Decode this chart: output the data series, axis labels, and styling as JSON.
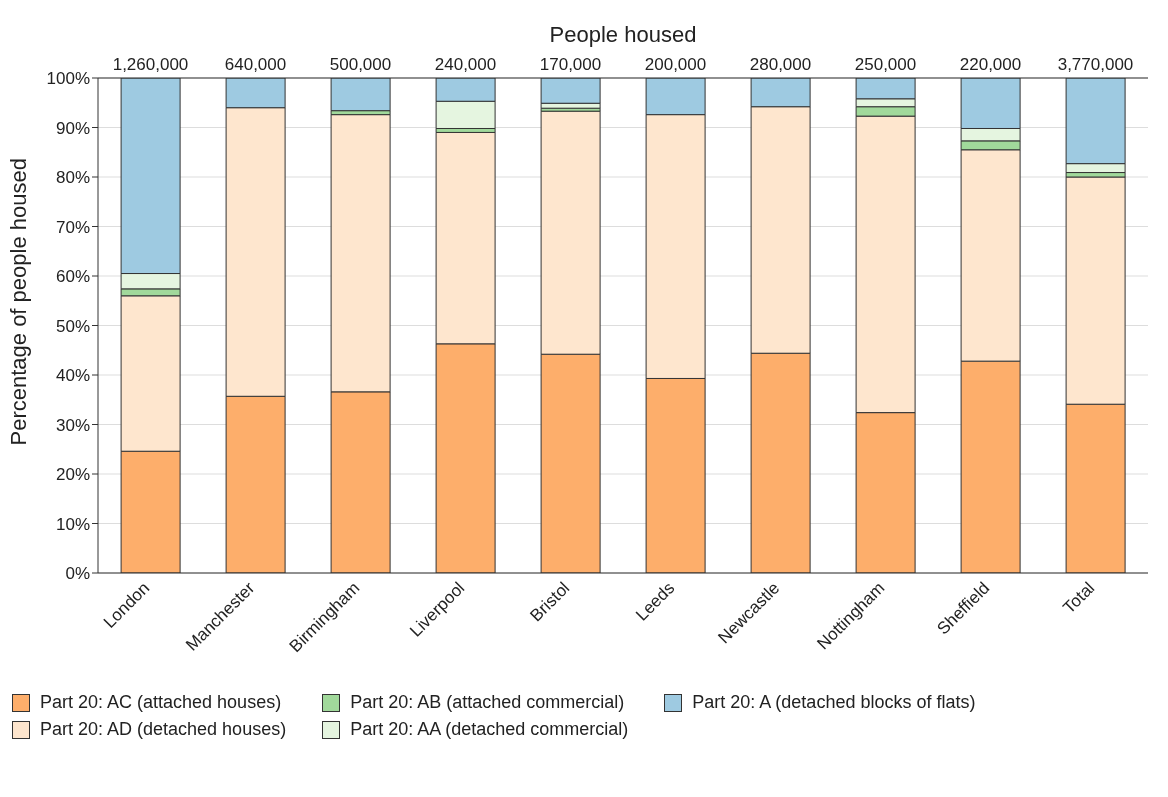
{
  "chart_data": {
    "type": "bar",
    "stacked": true,
    "x2label": "People housed",
    "ylabel": "Percentage of people housed",
    "categories": [
      "London",
      "Manchester",
      "Birmingham",
      "Liverpool",
      "Bristol",
      "Leeds",
      "Newcastle",
      "Nottingham",
      "Sheffield",
      "Total"
    ],
    "series": [
      {
        "name": "Part 20: AC (attached houses)",
        "color": "#fdae6b",
        "values": [
          24.6,
          35.7,
          36.6,
          46.3,
          44.2,
          39.3,
          44.4,
          32.4,
          42.8,
          34.1
        ]
      },
      {
        "name": "Part 20: AD (detached houses)",
        "color": "#fee6ce",
        "values": [
          31.4,
          58.3,
          56.0,
          42.7,
          49.1,
          53.3,
          49.8,
          59.9,
          42.7,
          45.9
        ]
      },
      {
        "name": "Part 20: AB (attached commercial)",
        "color": "#a1d99b",
        "values": [
          1.4,
          0,
          0.8,
          0.8,
          0.6,
          0,
          0,
          1.9,
          1.8,
          0.9
        ]
      },
      {
        "name": "Part 20: AA (detached commercial)",
        "color": "#e5f5e0",
        "values": [
          3.1,
          0,
          0,
          5.5,
          1.0,
          0,
          0,
          1.6,
          2.5,
          1.8
        ]
      },
      {
        "name": "Part 20: A (detached blocks of flats)",
        "color": "#9ecae1",
        "values": [
          39.5,
          6.0,
          6.6,
          4.7,
          5.1,
          7.4,
          5.8,
          4.2,
          10.2,
          17.3
        ]
      }
    ],
    "annotations": [
      "1,260,000",
      "640,000",
      "500,000",
      "240,000",
      "170,000",
      "200,000",
      "280,000",
      "250,000",
      "220,000",
      "3,770,000"
    ],
    "ylim": [
      0,
      100
    ],
    "yticks": [
      {
        "value": 0,
        "label": "0%"
      },
      {
        "value": 10,
        "label": "10%"
      },
      {
        "value": 20,
        "label": "20%"
      },
      {
        "value": 30,
        "label": "30%"
      },
      {
        "value": 40,
        "label": "40%"
      },
      {
        "value": 50,
        "label": "50%"
      },
      {
        "value": 60,
        "label": "60%"
      },
      {
        "value": 70,
        "label": "70%"
      },
      {
        "value": 80,
        "label": "80%"
      },
      {
        "value": 90,
        "label": "90%"
      },
      {
        "value": 100,
        "label": "100%"
      }
    ],
    "grid": "y",
    "legend": "bottom"
  }
}
